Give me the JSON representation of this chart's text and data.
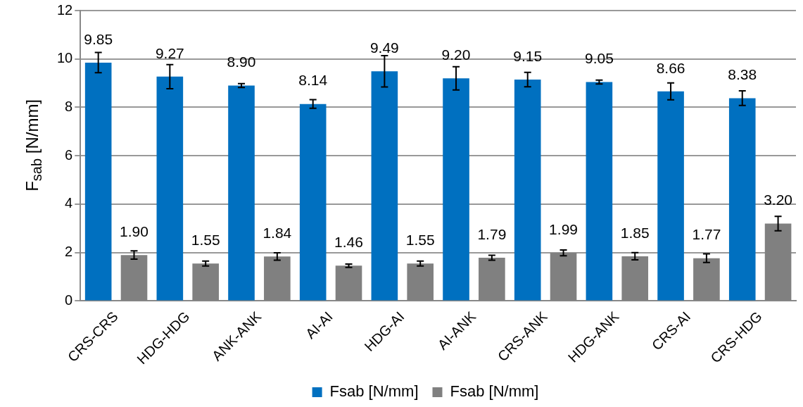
{
  "chart_data": {
    "type": "bar",
    "ylabel": "F$_{sab}$ [N/mm]",
    "categories": [
      "CRS-CRS",
      "HDG-HDG",
      "ANK-ANK",
      "AI-AI",
      "HDG-AI",
      "AI-ANK",
      "CRS-ANK",
      "HDG-ANK",
      "CRS-AI",
      "CRS-HDG"
    ],
    "series": [
      {
        "name": "Fsab [N/mm]",
        "color": "#0070c0",
        "values": [
          9.85,
          9.27,
          8.9,
          8.14,
          9.49,
          9.2,
          9.15,
          9.05,
          8.66,
          8.38
        ],
        "errors": [
          0.42,
          0.5,
          0.08,
          0.18,
          0.65,
          0.48,
          0.3,
          0.08,
          0.35,
          0.3
        ],
        "value_labels": [
          "9.85",
          "9.27",
          "8.90",
          "8.14",
          "9.49",
          "9.20",
          "9.15",
          "9.05",
          "8.66",
          "8.38"
        ]
      },
      {
        "name": "Fsab [N/mm]",
        "color": "#808080",
        "values": [
          1.9,
          1.55,
          1.84,
          1.46,
          1.55,
          1.79,
          1.99,
          1.85,
          1.77,
          3.2
        ],
        "errors": [
          0.17,
          0.1,
          0.15,
          0.07,
          0.1,
          0.1,
          0.12,
          0.15,
          0.18,
          0.3
        ],
        "value_labels": [
          "1.90",
          "1.55",
          "1.84",
          "1.46",
          "1.55",
          "1.79",
          "1.99",
          "1.85",
          "1.77",
          "3.20"
        ]
      }
    ],
    "ylim": [
      0,
      12
    ],
    "yticks": [
      0,
      2,
      4,
      6,
      8,
      10,
      12
    ],
    "grid": "y",
    "legend": "bottom"
  }
}
